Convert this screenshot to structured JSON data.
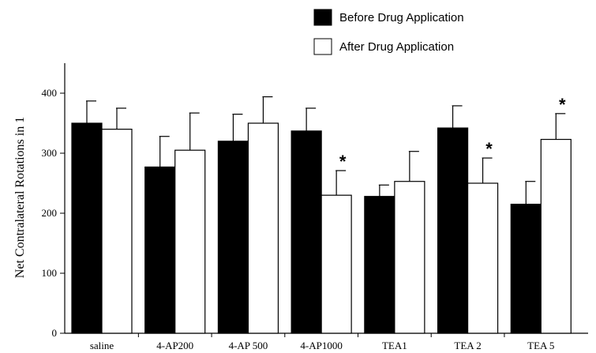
{
  "chart_data": {
    "type": "bar",
    "categories": [
      "saline",
      "4-AP200",
      "4-AP 500",
      "4-AP1000",
      "TEA1",
      "TEA 2",
      "TEA 5"
    ],
    "series": [
      {
        "name": "Before Drug Application",
        "color": "#000000",
        "values": [
          350,
          277,
          320,
          337,
          228,
          342,
          215
        ],
        "errors": [
          37,
          51,
          45,
          38,
          19,
          37,
          38
        ],
        "significant": [
          false,
          false,
          false,
          false,
          false,
          false,
          false
        ]
      },
      {
        "name": "After Drug Application",
        "color": "#ffffff",
        "values": [
          340,
          305,
          350,
          230,
          253,
          250,
          323
        ],
        "errors": [
          35,
          62,
          44,
          41,
          50,
          42,
          43
        ],
        "significant": [
          false,
          false,
          false,
          true,
          false,
          true,
          true
        ]
      }
    ],
    "significance_marker": "*",
    "title": "",
    "xlabel": "",
    "ylabel": "Net Contralateral Rotations in 1",
    "ylim": [
      0,
      450
    ],
    "yticks": [
      0,
      100,
      200,
      300,
      400
    ],
    "legend_position": "top-center",
    "grid": false
  }
}
